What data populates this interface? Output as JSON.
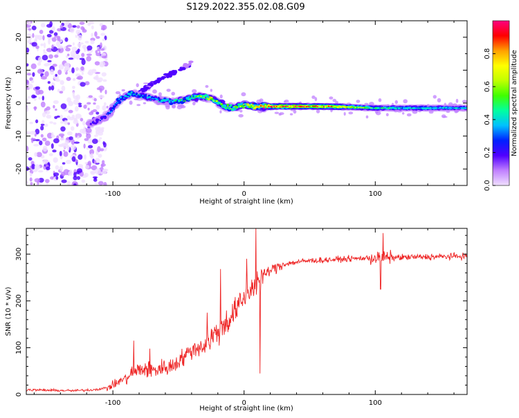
{
  "title": "S129.2022.355.02.08.G09",
  "chart_data": [
    {
      "type": "heatmap",
      "xlabel": "Height of straight line (km)",
      "ylabel": "Frequency (Hz)",
      "xlim": [
        -166,
        170
      ],
      "ylim": [
        -25,
        25
      ],
      "x_ticks": [
        -100,
        0,
        100
      ],
      "x_tick_labels": [
        "-100",
        "0",
        "100"
      ],
      "y_ticks": [
        -20,
        -10,
        0,
        10,
        20
      ],
      "y_tick_labels": [
        "-20",
        "-10",
        "0",
        "10",
        "20"
      ],
      "grid": false,
      "colorbar": {
        "label": "Normalized spectral amplitude",
        "range": [
          0,
          1
        ],
        "ticks": [
          0.0,
          0.2,
          0.4,
          0.6,
          0.8
        ],
        "tick_labels": [
          "0.0",
          "0.2",
          "0.4",
          "0.6",
          "0.8"
        ],
        "colors": [
          "#f0e0ff",
          "#c080ff",
          "#5000ff",
          "#0020ff",
          "#00c0ff",
          "#00ffa0",
          "#40ff00",
          "#c0ff00",
          "#ffff00",
          "#ffa000",
          "#ff0000",
          "#ff0080"
        ]
      },
      "ridge": {
        "x": [
          -115,
          -105,
          -95,
          -85,
          -75,
          -65,
          -55,
          -45,
          -35,
          -25,
          -15,
          -8,
          0,
          10,
          20,
          40,
          60,
          80,
          100,
          120,
          140,
          160,
          170
        ],
        "y": [
          -6,
          -4,
          1,
          3,
          2,
          1,
          0.5,
          1,
          2,
          1.5,
          -1,
          -1.5,
          -0.5,
          -1,
          -1,
          -1,
          -1,
          -1.2,
          -1.5,
          -1.5,
          -1.5,
          -1.5,
          -1.5
        ],
        "amplitude": [
          0.25,
          0.3,
          0.4,
          0.45,
          0.4,
          0.4,
          0.45,
          0.5,
          0.6,
          0.7,
          0.55,
          0.6,
          0.7,
          0.85,
          0.95,
          0.95,
          0.9,
          0.7,
          0.5,
          0.45,
          0.45,
          0.4,
          0.4
        ]
      },
      "secondary_ridge": {
        "x": [
          -80,
          -70,
          -60,
          -50,
          -40
        ],
        "y": [
          3,
          6,
          8,
          10,
          12
        ],
        "amplitude": [
          0.2,
          0.2,
          0.2,
          0.18,
          0.15
        ]
      },
      "noise_region_x": [
        -166,
        -105
      ]
    },
    {
      "type": "line",
      "xlabel": "Height of straight line (km)",
      "ylabel": "SNR (10 * v/v)",
      "xlim": [
        -166,
        170
      ],
      "ylim": [
        0,
        355
      ],
      "x_ticks": [
        -100,
        0,
        100
      ],
      "x_tick_labels": [
        "-100",
        "0",
        "100"
      ],
      "y_ticks": [
        0,
        100,
        200,
        300
      ],
      "y_tick_labels": [
        "0",
        "100",
        "200",
        "300"
      ],
      "grid": false,
      "series": [
        {
          "color": "#ee2222",
          "x": [
            -166,
            -150,
            -130,
            -115,
            -105,
            -100,
            -95,
            -90,
            -85,
            -80,
            -75,
            -70,
            -65,
            -60,
            -55,
            -50,
            -45,
            -40,
            -35,
            -30,
            -25,
            -20,
            -15,
            -10,
            -5,
            0,
            5,
            10,
            15,
            20,
            25,
            30,
            40,
            50,
            60,
            80,
            100,
            120,
            140,
            160,
            170
          ],
          "y": [
            10,
            9,
            8,
            10,
            14,
            20,
            28,
            36,
            45,
            52,
            55,
            50,
            55,
            58,
            60,
            72,
            82,
            95,
            100,
            105,
            120,
            135,
            150,
            165,
            185,
            205,
            225,
            240,
            255,
            265,
            272,
            278,
            283,
            286,
            287,
            290,
            292,
            293,
            294,
            295,
            296
          ]
        }
      ],
      "spikes": [
        {
          "x": -84,
          "y": 115
        },
        {
          "x": -72,
          "y": 98
        },
        {
          "x": -28,
          "y": 175
        },
        {
          "x": -18,
          "y": 268
        },
        {
          "x": 2,
          "y": 290
        },
        {
          "x": 9,
          "y": 355
        },
        {
          "x": 12,
          "y": 45
        },
        {
          "x": 106,
          "y": 345
        },
        {
          "x": 104,
          "y": 225
        }
      ]
    }
  ]
}
